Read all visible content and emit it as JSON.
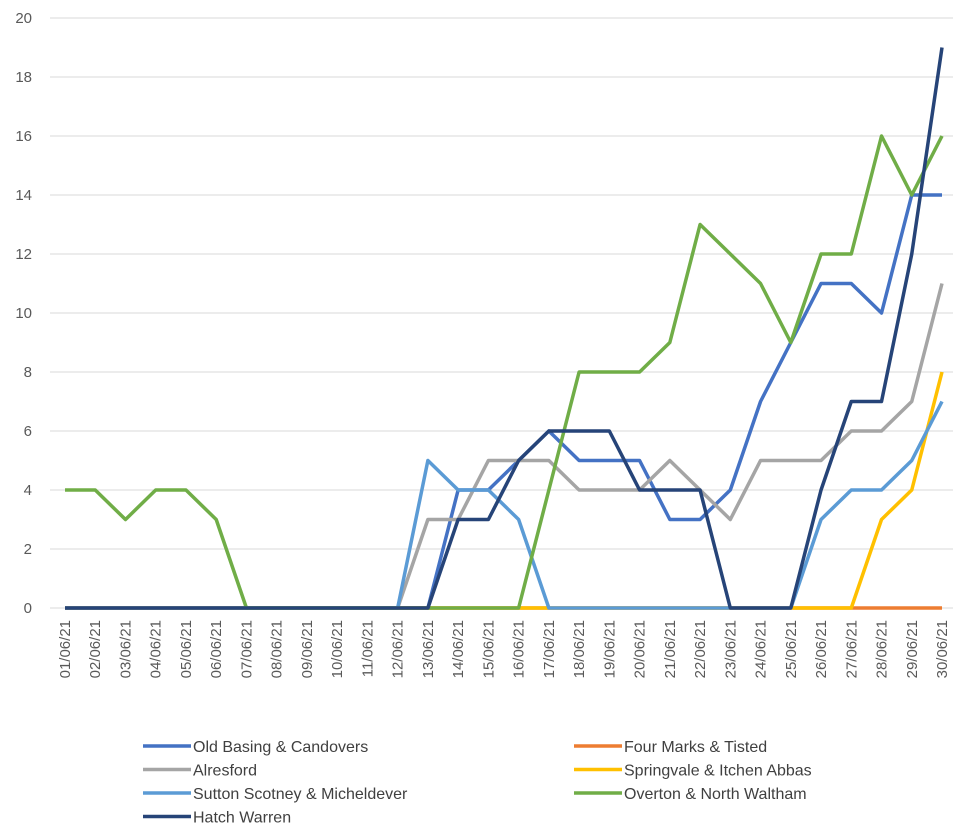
{
  "chart_data": {
    "type": "line",
    "categories": [
      "01/06/21",
      "02/06/21",
      "03/06/21",
      "04/06/21",
      "05/06/21",
      "06/06/21",
      "07/06/21",
      "08/06/21",
      "09/06/21",
      "10/06/21",
      "11/06/21",
      "12/06/21",
      "13/06/21",
      "14/06/21",
      "15/06/21",
      "16/06/21",
      "17/06/21",
      "18/06/21",
      "19/06/21",
      "20/06/21",
      "21/06/21",
      "22/06/21",
      "23/06/21",
      "24/06/21",
      "25/06/21",
      "26/06/21",
      "27/06/21",
      "28/06/21",
      "29/06/21",
      "30/06/21"
    ],
    "series": [
      {
        "name": "Old Basing & Candovers",
        "color": "#4472c4",
        "values": [
          0,
          0,
          0,
          0,
          0,
          0,
          0,
          0,
          0,
          0,
          0,
          0,
          0,
          4,
          4,
          5,
          6,
          5,
          5,
          5,
          3,
          3,
          4,
          7,
          9,
          11,
          11,
          10,
          14,
          14
        ]
      },
      {
        "name": "Four Marks & Tisted",
        "color": "#ed7d31",
        "values": [
          0,
          0,
          0,
          0,
          0,
          0,
          0,
          0,
          0,
          0,
          0,
          0,
          0,
          0,
          0,
          0,
          0,
          0,
          0,
          0,
          0,
          0,
          0,
          0,
          0,
          0,
          0,
          0,
          0,
          0
        ]
      },
      {
        "name": "Alresford",
        "color": "#a5a5a5",
        "values": [
          0,
          0,
          0,
          0,
          0,
          0,
          0,
          0,
          0,
          0,
          0,
          0,
          3,
          3,
          5,
          5,
          5,
          4,
          4,
          4,
          5,
          4,
          3,
          5,
          5,
          5,
          6,
          6,
          7,
          11
        ]
      },
      {
        "name": "Springvale & Itchen Abbas",
        "color": "#ffc000",
        "values": [
          0,
          0,
          0,
          0,
          0,
          0,
          0,
          0,
          0,
          0,
          0,
          0,
          0,
          0,
          0,
          0,
          0,
          0,
          0,
          0,
          0,
          0,
          0,
          0,
          0,
          0,
          0,
          3,
          4,
          8
        ]
      },
      {
        "name": "Sutton Scotney & Micheldever",
        "color": "#5b9bd5",
        "values": [
          0,
          0,
          0,
          0,
          0,
          0,
          0,
          0,
          0,
          0,
          0,
          0,
          5,
          4,
          4,
          3,
          0,
          0,
          0,
          0,
          0,
          0,
          0,
          0,
          0,
          3,
          4,
          4,
          5,
          7
        ]
      },
      {
        "name": "Overton & North Waltham",
        "color": "#70ad47",
        "values": [
          4,
          4,
          3,
          4,
          4,
          3,
          0,
          0,
          0,
          0,
          0,
          0,
          0,
          0,
          0,
          0,
          4,
          8,
          8,
          8,
          9,
          13,
          12,
          11,
          9,
          12,
          12,
          16,
          14,
          16
        ]
      },
      {
        "name": "Hatch Warren",
        "color": "#264478",
        "values": [
          0,
          0,
          0,
          0,
          0,
          0,
          0,
          0,
          0,
          0,
          0,
          0,
          0,
          3,
          3,
          5,
          6,
          6,
          6,
          4,
          4,
          4,
          0,
          0,
          0,
          4,
          7,
          7,
          12,
          19
        ]
      }
    ],
    "ylim": [
      0,
      20
    ],
    "yticks": [
      0,
      2,
      4,
      6,
      8,
      10,
      12,
      14,
      16,
      18,
      20
    ],
    "grid": true
  }
}
